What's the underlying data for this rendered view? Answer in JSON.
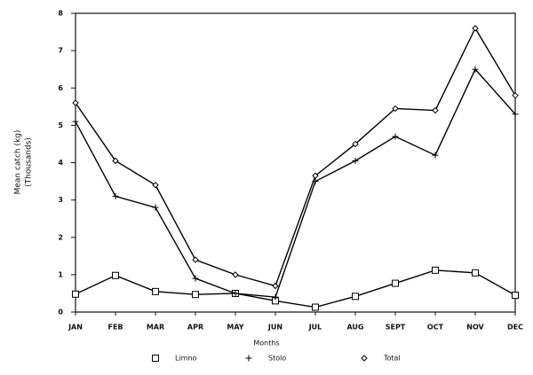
{
  "chart_data": {
    "type": "line",
    "x_label": "Months",
    "y_label": [
      "Mean catch (kg)",
      "(Thousands)"
    ],
    "categories": [
      "JAN",
      "FEB",
      "MAR",
      "APR",
      "MAY",
      "JUN",
      "JUL",
      "AUG",
      "SEPT",
      "OCT",
      "NOV",
      "DEC"
    ],
    "series": [
      {
        "name": "Limno",
        "color": "#000000",
        "marker": "square",
        "values": [
          0.48,
          0.98,
          0.55,
          0.47,
          0.5,
          0.3,
          0.13,
          0.42,
          0.77,
          1.12,
          1.05,
          0.45
        ]
      },
      {
        "name": "Stolo",
        "color": "#000000",
        "marker": "plus",
        "values": [
          5.1,
          3.1,
          2.8,
          0.9,
          0.5,
          0.4,
          3.5,
          4.05,
          4.7,
          4.2,
          6.5,
          5.3
        ]
      },
      {
        "name": "Total",
        "color": "#000000",
        "marker": "diamond",
        "values": [
          5.6,
          4.05,
          3.4,
          1.4,
          1.0,
          0.7,
          3.65,
          4.5,
          5.45,
          5.4,
          7.6,
          5.8
        ]
      }
    ],
    "ylim": [
      0,
      8
    ],
    "yticks": [
      0,
      1,
      2,
      3,
      4,
      5,
      6,
      7,
      8
    ],
    "grid": false,
    "legend": "bottom"
  }
}
